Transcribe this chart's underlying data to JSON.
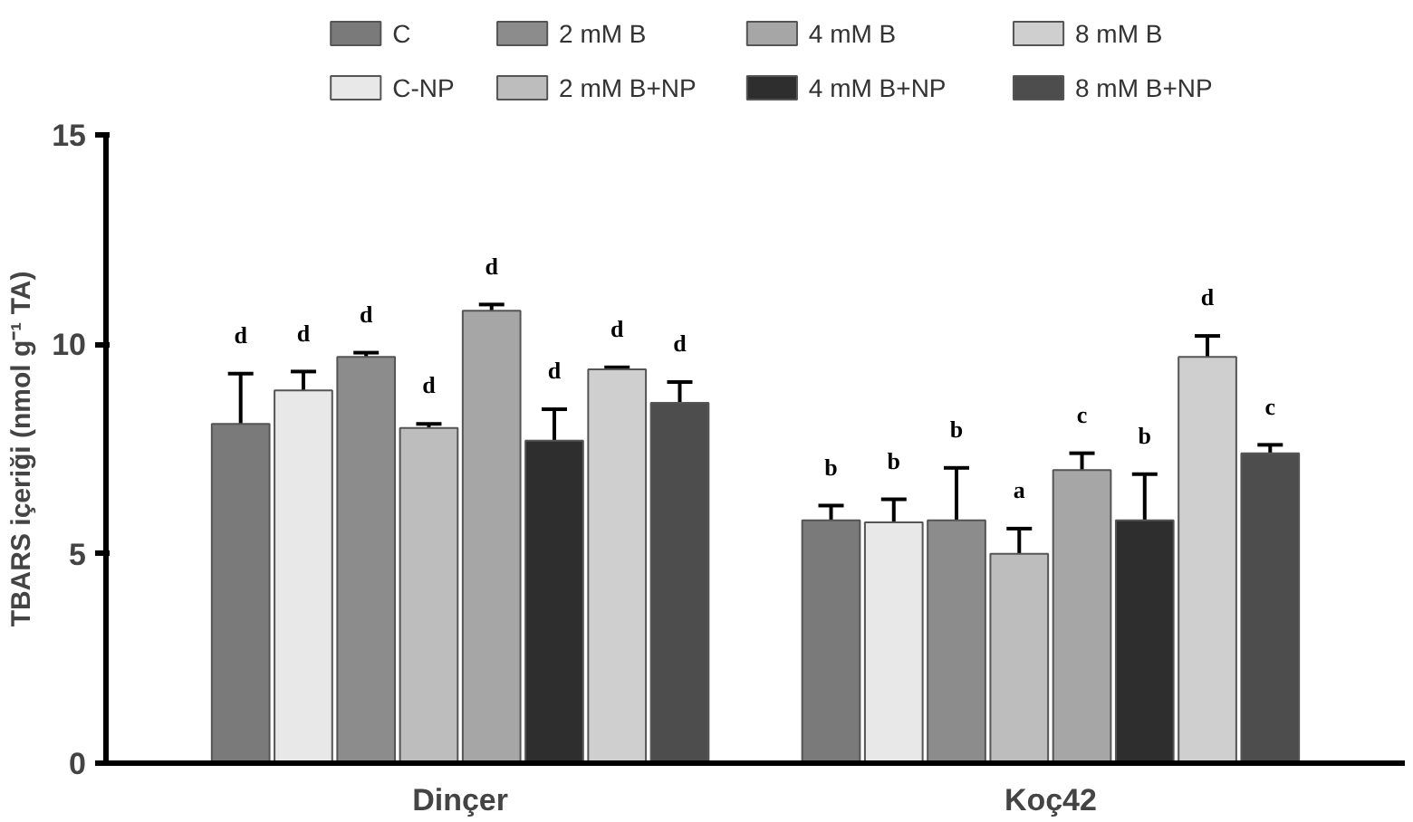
{
  "chart_data": {
    "type": "bar",
    "ylabel": "TBARS içeriği (nmol g⁻¹ TA)",
    "categories": [
      "Dinçer",
      "Koç42"
    ],
    "ylim": [
      0,
      15
    ],
    "yticks": [
      0,
      5,
      10,
      15
    ],
    "grid": false,
    "legend": "top",
    "series": [
      {
        "name": "C",
        "color": "#7a7a7a",
        "values": [
          8.1,
          5.8
        ],
        "errors": [
          1.2,
          0.35
        ]
      },
      {
        "name": "C-NP",
        "color": "#e8e8e8",
        "values": [
          8.9,
          5.75
        ],
        "errors": [
          0.45,
          0.55
        ]
      },
      {
        "name": "2 mM B",
        "color": "#8c8c8c",
        "values": [
          9.7,
          5.8
        ],
        "errors": [
          0.1,
          1.25
        ]
      },
      {
        "name": "2 mM B+NP",
        "color": "#bdbdbd",
        "values": [
          8.0,
          5.0
        ],
        "errors": [
          0.1,
          0.6
        ]
      },
      {
        "name": "4 mM B",
        "color": "#a6a6a6",
        "values": [
          10.8,
          7.0
        ],
        "errors": [
          0.15,
          0.4
        ]
      },
      {
        "name": "4 mM B+NP",
        "color": "#2e2e2e",
        "values": [
          7.7,
          5.8
        ],
        "errors": [
          0.75,
          1.1
        ]
      },
      {
        "name": "8 mM B",
        "color": "#cfcfcf",
        "values": [
          9.4,
          9.7
        ],
        "errors": [
          0.05,
          0.5
        ]
      },
      {
        "name": "8 mM B+NP",
        "color": "#4d4d4d",
        "values": [
          8.6,
          7.4
        ],
        "errors": [
          0.5,
          0.2
        ]
      }
    ],
    "annotations": [
      "d",
      "d",
      "d",
      "d",
      "d",
      "d",
      "d",
      "d",
      "b",
      "b",
      "b",
      "a",
      "c",
      "b",
      "d",
      "c"
    ]
  }
}
